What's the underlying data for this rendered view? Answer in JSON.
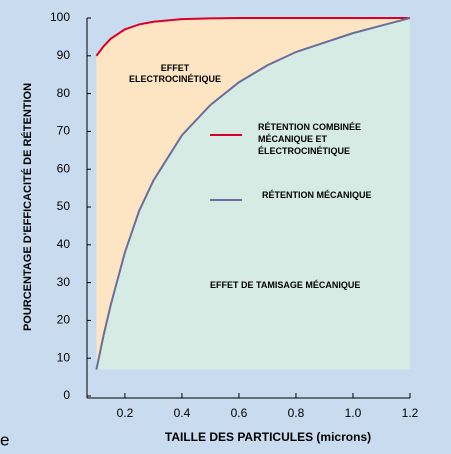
{
  "chart_data": {
    "type": "line",
    "ylabel": "POURCENTAGE D'EFFICACITÉ DE RÉTENTION",
    "xlabel": "TAILLE DES PARTICULES (microns)",
    "x": [
      0.1,
      0.125,
      0.15,
      0.2,
      0.25,
      0.3,
      0.4,
      0.5,
      0.6,
      0.7,
      0.8,
      0.9,
      1.0,
      1.1,
      1.2
    ],
    "series": [
      {
        "name": "RÉTENTION COMBINÉE\nMÉCANIQUE ET\nÉLECTROCINÉTIQUE",
        "color": "#d6002a",
        "values": [
          90,
          92.5,
          94.5,
          97,
          98.3,
          99,
          99.7,
          99.9,
          100,
          100,
          100,
          100,
          100,
          100,
          100
        ]
      },
      {
        "name": "RÉTENTION MÉCANIQUE",
        "color": "#6a6e9c",
        "values": [
          7,
          16,
          24,
          38,
          49,
          57,
          69,
          77,
          83,
          87.5,
          91,
          93.5,
          96,
          98,
          100
        ]
      }
    ],
    "annotations": [
      "EFFET\nELECTROCINÉTIQUE",
      "EFFET DE TAMISAGE MÉCANIQUE"
    ],
    "fragment": "e",
    "xlim": [
      0.067,
      1.2
    ],
    "xticks": [
      0.2,
      0.4,
      0.6,
      0.8,
      {
        "value": 1.0,
        "label": "1.0"
      },
      1.2
    ],
    "ylim": [
      0,
      100
    ],
    "yticks": [
      0,
      10,
      20,
      30,
      40,
      50,
      60,
      70,
      80,
      90,
      100
    ],
    "fill_colors": [
      "#fde4c2",
      "#d5ebe4"
    ],
    "background": "#c9dcef"
  }
}
